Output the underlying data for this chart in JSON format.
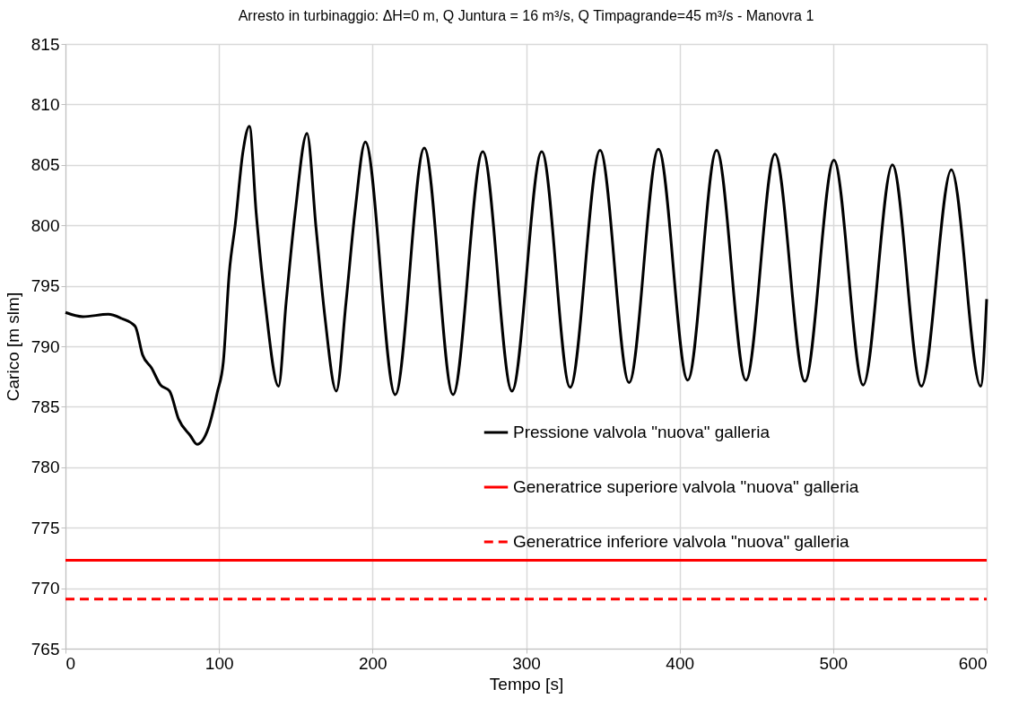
{
  "chart_data": {
    "type": "line",
    "title": "Arresto in turbinaggio: ΔH=0 m, Q Juntura = 16 m³/s, Q Timpagrande=45 m³/s - Manovra 1",
    "xlabel": "Tempo [s]",
    "ylabel": "Carico [m slm]",
    "xlim": [
      0,
      600
    ],
    "xticks": [
      0,
      100,
      200,
      300,
      400,
      500,
      600
    ],
    "ylim": [
      765,
      815
    ],
    "yticks": [
      765,
      770,
      775,
      780,
      785,
      790,
      795,
      800,
      805,
      810,
      815
    ],
    "grid": true,
    "legend": "right",
    "marker": "none",
    "series": [
      {
        "name": "Pressione valvola \"nuova\" galleria",
        "color": "#000000",
        "line_style": "solid",
        "x": [
          0,
          11.3,
          27.9,
          36.6,
          45.4,
          50.2,
          56.1,
          61.9,
          67.8,
          73.6,
          81.4,
          85.7,
          93.1,
          98.9,
          102.8,
          106.7,
          110.6,
          115.5,
          119.8,
          124.2,
          130.1,
          138.8,
          143.7,
          149.6,
          157.3,
          163.2,
          169.0,
          176.4,
          182.7,
          188.5,
          195.3,
          214.8,
          233.7,
          252.4,
          271.8,
          290.8,
          310.2,
          328.7,
          348.2,
          367.1,
          386.2,
          405.3,
          424.1,
          443.2,
          462.1,
          481.6,
          500.5,
          519.6,
          538.6,
          557.5,
          577.0,
          596.1,
          600
        ],
        "values": [
          792.8,
          792.45,
          792.65,
          792.3,
          791.65,
          789.3,
          788.2,
          786.8,
          786.3,
          784.0,
          782.6,
          781.9,
          783.25,
          786.2,
          788.7,
          796.1,
          800.1,
          806.0,
          808.2,
          801.05,
          793.6,
          786.7,
          793.6,
          801.05,
          807.6,
          799.8,
          792.4,
          786.3,
          793.6,
          801.05,
          806.9,
          786.0,
          806.4,
          786.0,
          806.1,
          786.3,
          806.1,
          786.6,
          806.2,
          787.0,
          806.3,
          787.2,
          806.2,
          787.2,
          805.9,
          787.1,
          805.4,
          786.8,
          805.0,
          786.7,
          804.6,
          786.7,
          793.9
        ]
      },
      {
        "name": "Generatrice superiore valvola \"nuova\" galleria",
        "color": "#ff0000",
        "line_style": "solid",
        "x": [
          0,
          600
        ],
        "values": [
          772.3,
          772.3
        ]
      },
      {
        "name": "Generatrice inferiore valvola \"nuova\" galleria",
        "color": "#ff0000",
        "line_style": "dashed",
        "x": [
          0,
          600
        ],
        "values": [
          769.1,
          769.1
        ]
      }
    ]
  }
}
